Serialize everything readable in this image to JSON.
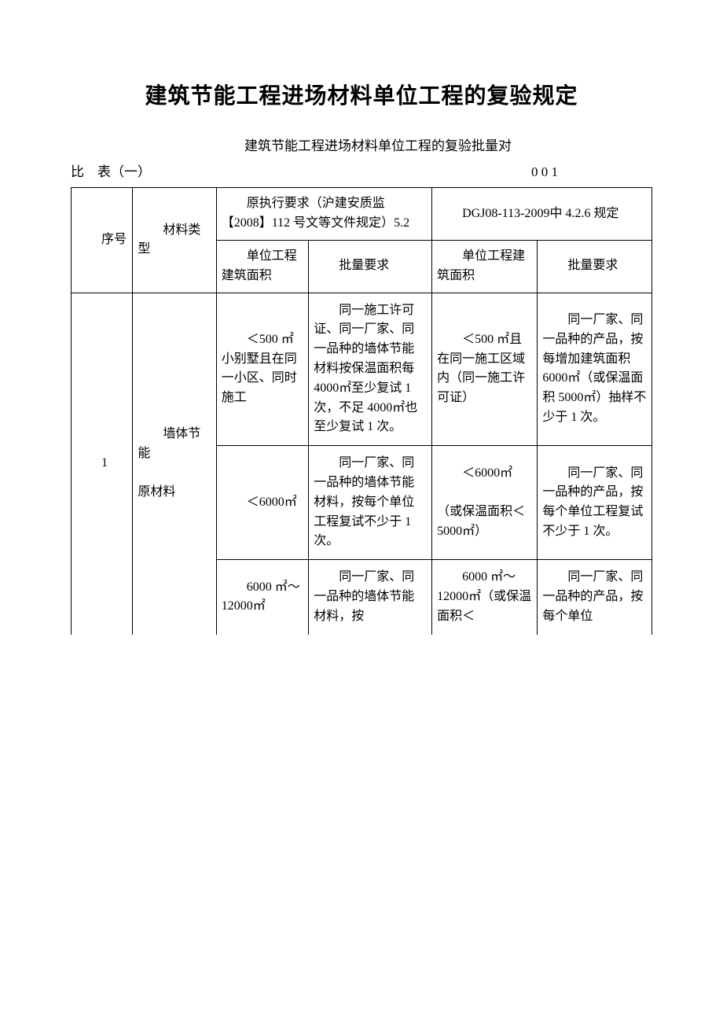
{
  "doc": {
    "title": "建筑节能工程进场材料单位工程的复验规定",
    "subtitle_prefix": "建筑节能工程进场材料单位工程的复验批量对",
    "subtitle_left": "比　表（一）",
    "subtitle_right": "0  0  1"
  },
  "headers": {
    "seq": "序号",
    "type": "材料类型",
    "group_left": "原执行要求（沪建安质监【2008】112 号文等文件规定）5.2",
    "group_right": "DGJ08-113-2009中 4.2.6 规定",
    "sub_area": "单位工程建筑面积",
    "sub_batch": "批量要求"
  },
  "row1": {
    "seq": "1",
    "type": "墙体节能\n\n原材料",
    "cells": [
      {
        "a": "＜500 ㎡小别墅且在同一小区、同时施工",
        "b": "同一施工许可证、同一厂家、同一品种的墙体节能材料按保温面积每 4000㎡至少复试 1 次，不足 4000㎡也至少复试 1 次。",
        "c": "＜500 ㎡且在同一施工区域内（同一施工许可证）",
        "d": "同一厂家、同一品种的产品，按每增加建筑面积 6000㎡（或保温面积 5000㎡）抽样不少于 1 次。"
      },
      {
        "a": "＜6000㎡",
        "b": "同一厂家、同一品种的墙体节能材料，按每个单位工程复试不少于 1 次。",
        "c": "＜6000㎡\n\n（或保温面积＜5000㎡）",
        "d": "同一厂家、同一品种的产品，按每个单位工程复试不少于 1 次。"
      },
      {
        "a": "6000 ㎡～12000㎡",
        "b": "同一厂家、同一品种的墙体节能材料，按",
        "c": "6000 ㎡～12000㎡（或保温面积＜",
        "d": "同一厂家、同一品种的产品，按每个单位"
      }
    ]
  },
  "style": {
    "background_color": "#ffffff",
    "text_color": "#000000",
    "border_color": "#000000",
    "title_fontsize": 28,
    "body_fontsize": 16
  }
}
